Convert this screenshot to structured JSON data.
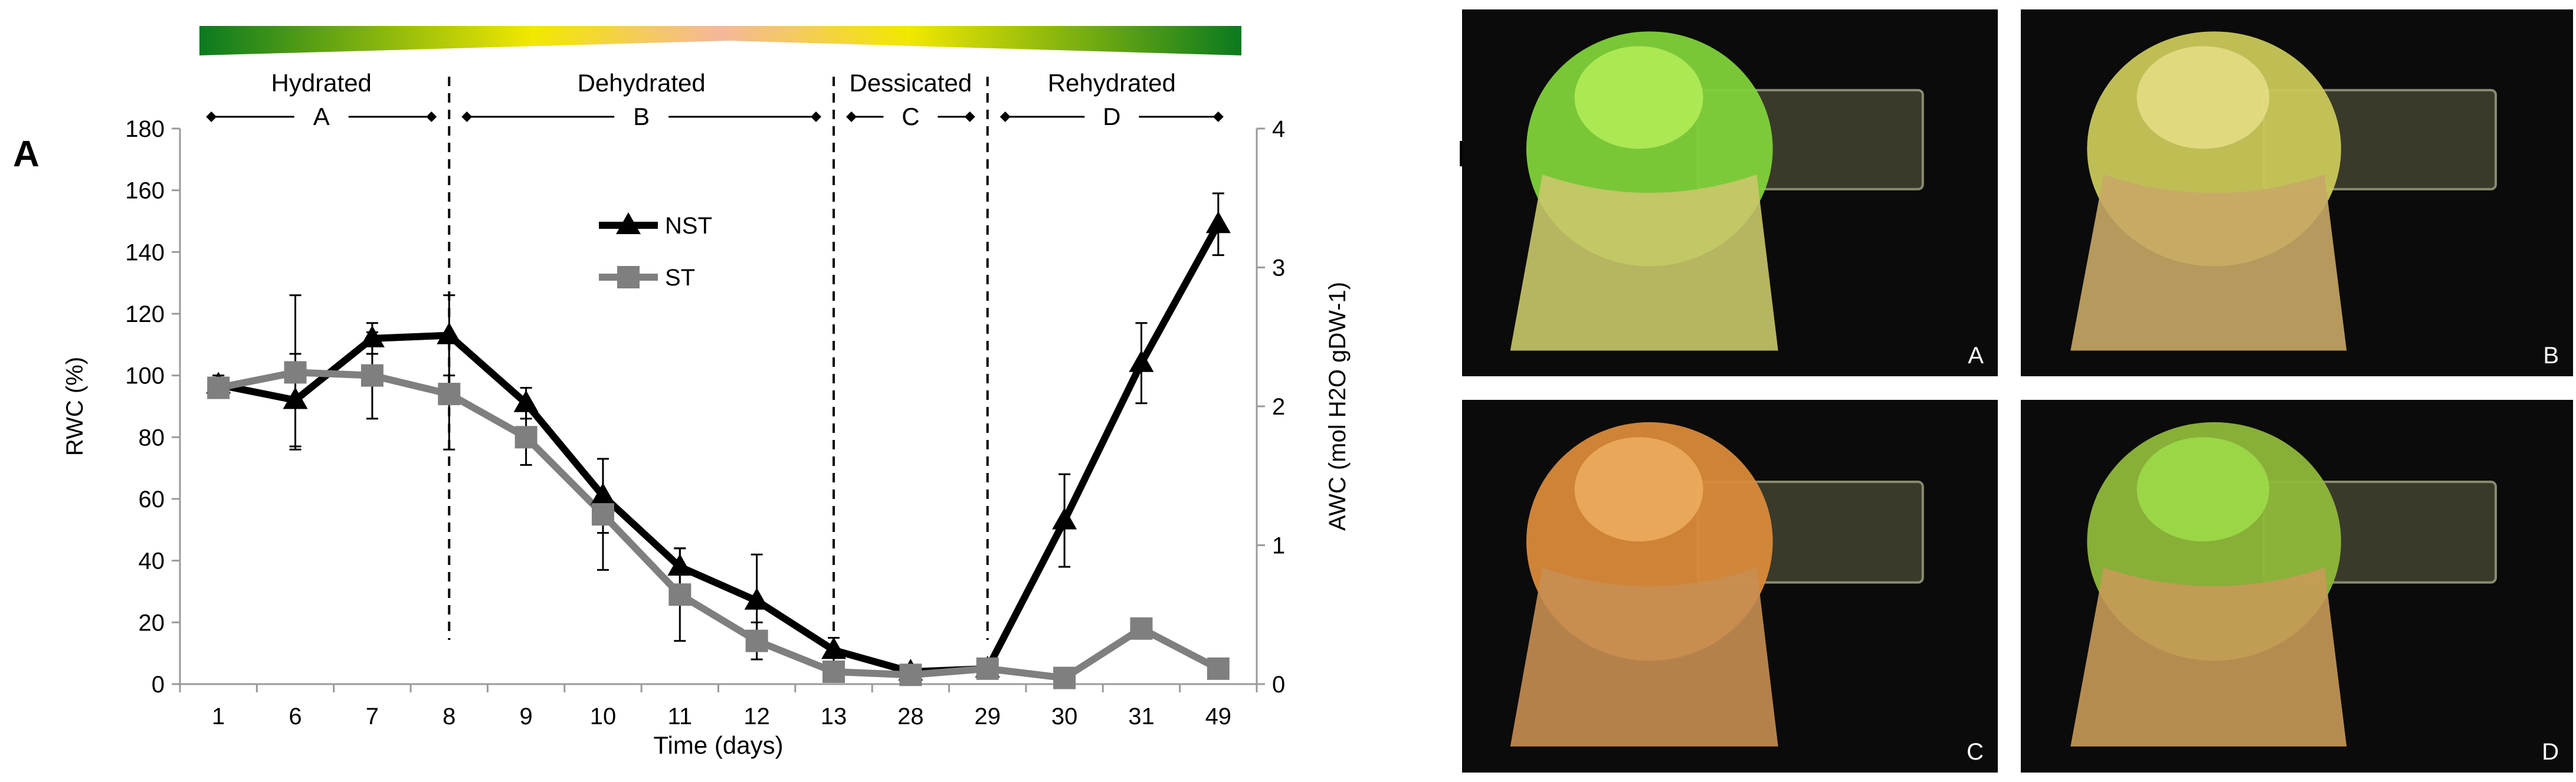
{
  "panel_labels": {
    "left": "A",
    "right": "B"
  },
  "colors": {
    "nst": "#000000",
    "st": "#7f7f7f",
    "gradient": [
      "#0a7a1f",
      "#f2e800",
      "#f5b79a",
      "#f2e800",
      "#0a7a1f"
    ]
  },
  "chart_data": {
    "type": "line",
    "categories": [
      "1",
      "6",
      "7",
      "8",
      "9",
      "10",
      "11",
      "12",
      "13",
      "28",
      "29",
      "30",
      "31",
      "49"
    ],
    "xlabel": "Time (days)",
    "ylabel": "RWC (%)",
    "y2label": "AWC (mol H2O gDW-1)",
    "ylim": [
      0,
      180
    ],
    "y2lim": [
      0,
      4
    ],
    "yticks": [
      "0",
      "20",
      "40",
      "60",
      "80",
      "100",
      "120",
      "140",
      "160",
      "180"
    ],
    "y2ticks": [
      "0",
      "1",
      "2",
      "3",
      "4"
    ],
    "series": [
      {
        "name": "NST",
        "marker": "triangle",
        "values": [
          97,
          92,
          112,
          113,
          91,
          61,
          38,
          27,
          11,
          4,
          5,
          53,
          104,
          149
        ],
        "errors": [
          3,
          15,
          5,
          13,
          5,
          12,
          6,
          15,
          4,
          1,
          2,
          15,
          13,
          10
        ]
      },
      {
        "name": "ST",
        "marker": "square",
        "values": [
          96,
          101,
          100,
          94,
          80,
          55,
          29,
          14,
          4,
          3,
          5,
          2,
          18,
          5
        ],
        "errors": [
          2,
          25,
          14,
          18,
          9,
          18,
          15,
          6,
          2,
          1,
          1,
          1,
          3,
          1
        ]
      }
    ],
    "phases": [
      {
        "name": "Hydrated",
        "letter": "A",
        "from_index": 0,
        "to_index": 3
      },
      {
        "name": "Dehydrated",
        "letter": "B",
        "from_index": 3,
        "to_index": 8
      },
      {
        "name": "Dessicated",
        "letter": "C",
        "from_index": 8,
        "to_index": 10
      },
      {
        "name": "Rehydrated",
        "letter": "D",
        "from_index": 10,
        "to_index": 13
      }
    ]
  },
  "photos": [
    {
      "letter": "A",
      "tone": "green"
    },
    {
      "letter": "B",
      "tone": "yellow"
    },
    {
      "letter": "C",
      "tone": "orange"
    },
    {
      "letter": "D",
      "tone": "recovering"
    }
  ]
}
